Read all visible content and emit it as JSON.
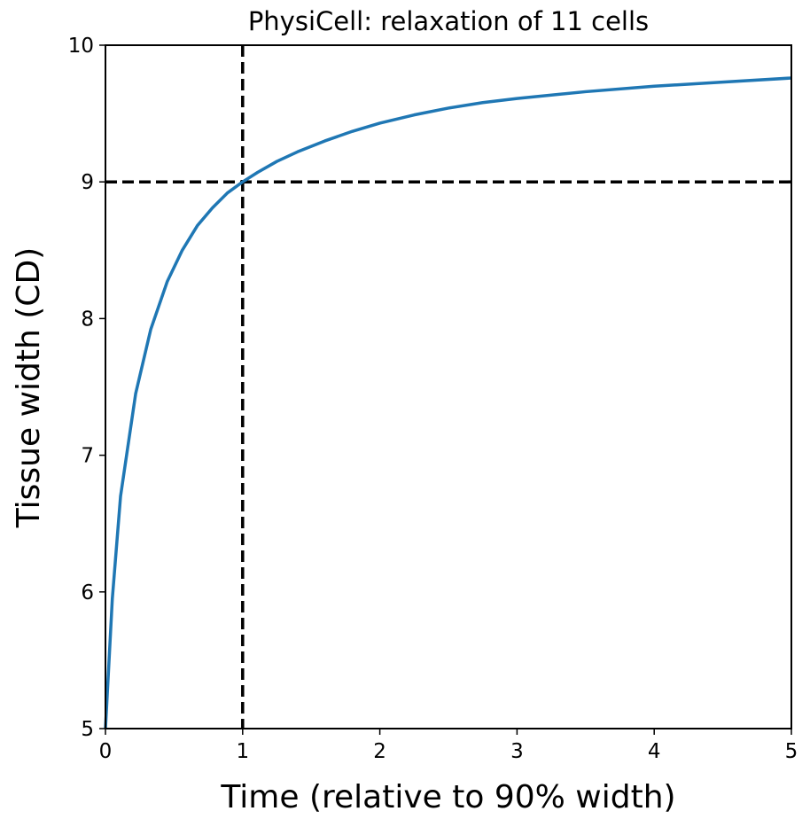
{
  "chart_data": {
    "type": "line",
    "title": "PhysiCell: relaxation of 11 cells",
    "xlabel": "Time (relative to 90% width)",
    "ylabel": "Tissue width (CD)",
    "xlim": [
      0,
      5
    ],
    "ylim": [
      5,
      10
    ],
    "xticks": [
      "0",
      "1",
      "2",
      "3",
      "4",
      "5"
    ],
    "yticks": [
      "5",
      "6",
      "7",
      "8",
      "9",
      "10"
    ],
    "grid": false,
    "series": [
      {
        "color": "#1f77b4",
        "x": [
          0,
          0.05,
          0.11,
          0.22,
          0.33,
          0.45,
          0.56,
          0.67,
          0.78,
          0.89,
          1.0,
          1.11,
          1.25,
          1.4,
          1.6,
          1.8,
          2.0,
          2.25,
          2.5,
          2.75,
          3.0,
          3.5,
          4.0,
          4.5,
          5.0
        ],
        "y": [
          5.0,
          5.95,
          6.7,
          7.45,
          7.92,
          8.27,
          8.5,
          8.68,
          8.81,
          8.92,
          9.0,
          9.07,
          9.15,
          9.22,
          9.3,
          9.37,
          9.43,
          9.49,
          9.54,
          9.58,
          9.61,
          9.66,
          9.7,
          9.73,
          9.76
        ]
      }
    ],
    "reference_lines": [
      {
        "orientation": "vertical",
        "value": 1,
        "style": "dashed",
        "color": "#000000"
      },
      {
        "orientation": "horizontal",
        "value": 9,
        "style": "dashed",
        "color": "#000000"
      }
    ]
  }
}
